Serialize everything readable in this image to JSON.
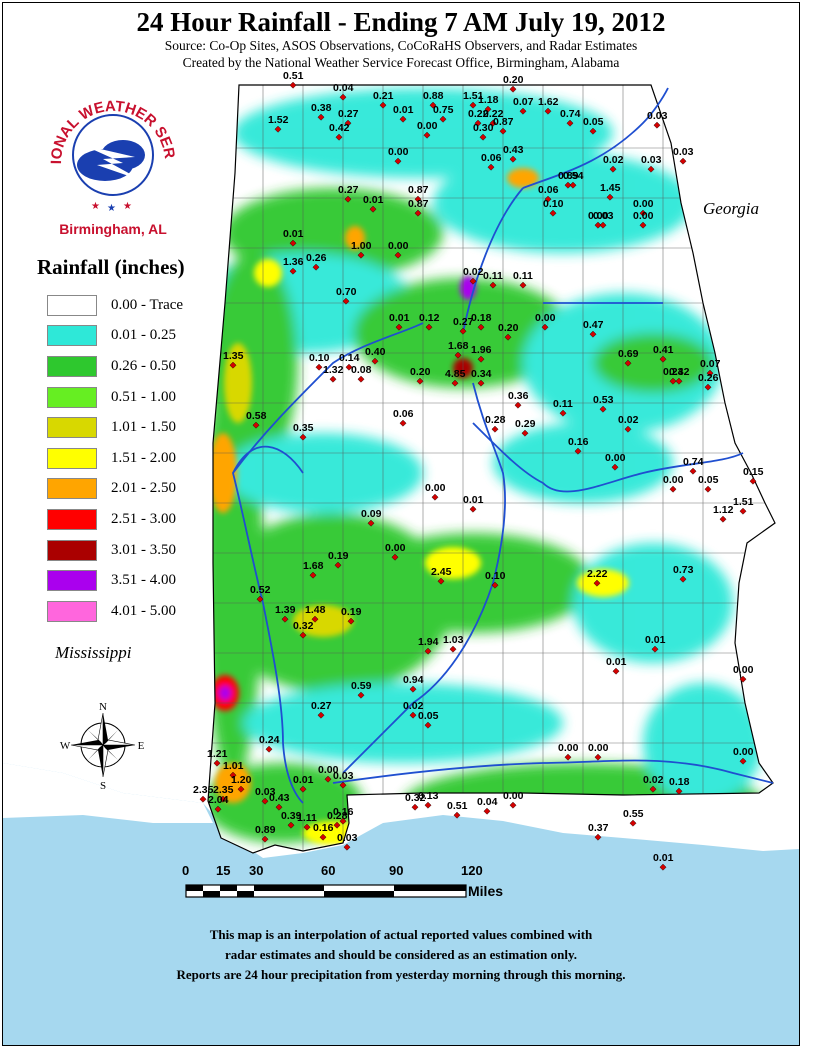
{
  "header": {
    "title": "24 Hour Rainfall - Ending 7 AM July 19, 2012",
    "source": "Source: Co-Op Sites, ASOS Observations, CoCoRaHS Observers, and Radar Estimates",
    "created_by": "Created by the National Weather Service Forecast Office, Birmingham, Alabama"
  },
  "logo": {
    "text": "NATIONAL WEATHER SERVICE",
    "city": "Birmingham, AL",
    "icon": "nws-logo-icon"
  },
  "legend": {
    "title": "Rainfall (inches)",
    "items": [
      {
        "label": "0.00 - Trace",
        "color": "#ffffff"
      },
      {
        "label": "0.01 - 0.25",
        "color": "#2ee8d8"
      },
      {
        "label": "0.26 - 0.50",
        "color": "#2ec82e"
      },
      {
        "label": "0.51 - 1.00",
        "color": "#66ee22"
      },
      {
        "label": "1.01 - 1.50",
        "color": "#d8d800"
      },
      {
        "label": "1.51 - 2.00",
        "color": "#ffff00"
      },
      {
        "label": "2.01 - 2.50",
        "color": "#ffa500"
      },
      {
        "label": "2.51 - 3.00",
        "color": "#ff0000"
      },
      {
        "label": "3.01 - 3.50",
        "color": "#aa0000"
      },
      {
        "label": "3.51 - 4.00",
        "color": "#aa00ee"
      },
      {
        "label": "4.01 - 5.00",
        "color": "#ff66dd"
      }
    ]
  },
  "states": {
    "georgia": "Georgia",
    "mississippi": "Mississippi"
  },
  "compass": {
    "n": "N",
    "s": "S",
    "e": "E",
    "w": "W"
  },
  "scale": {
    "ticks": [
      "0",
      "15",
      "30",
      "60",
      "90",
      "120"
    ],
    "unit": "Miles"
  },
  "disclaimer": [
    "This map is an interpolation of actual reported values combined with",
    "radar estimates and should be considered as an estimation only.",
    "Reports are 24 hour precipitation from yesterday morning through this morning."
  ],
  "reports": [
    "0.51",
    "0.04",
    "0.21",
    "0.88",
    "1.51",
    "0.20",
    "1.18",
    "0.07",
    "1.62",
    "1.52",
    "0.38",
    "0.27",
    "0.42",
    "0.01",
    "0.75",
    "0.22",
    "0.22",
    "0.74",
    "0.03",
    "0.00",
    "0.30",
    "0.87",
    "0.05",
    "0.06",
    "0.43",
    "0.00",
    "0.02",
    "0.03",
    "0.03",
    "0.89",
    "0.54",
    "1.45",
    "0.27",
    "0.87",
    "0.01",
    "0.87",
    "0.06",
    "0.10",
    "0.00",
    "0.03",
    "0.00",
    "0.00",
    "1.00",
    "0.00",
    "0.01",
    "0.26",
    "1.36",
    "0.02",
    "0.11",
    "0.11",
    "0.70",
    "0.01",
    "0.12",
    "0.27",
    "0.18",
    "0.20",
    "0.00",
    "0.47",
    "1.35",
    "1.68",
    "1.96",
    "0.69",
    "0.41",
    "0.07",
    "0.10",
    "0.14",
    "0.40",
    "1.32",
    "0.08",
    "0.20",
    "4.85",
    "0.34",
    "0.36",
    "0.23",
    "0.42",
    "0.26",
    "0.58",
    "0.06",
    "0.28",
    "0.29",
    "0.11",
    "0.53",
    "0.35",
    "0.16",
    "0.00",
    "0.02",
    "0.74",
    "0.15",
    "0.00",
    "0.00",
    "0.01",
    "0.09",
    "0.05",
    "1.12",
    "1.51",
    "0.19",
    "1.68",
    "0.00",
    "2.45",
    "0.10",
    "2.22",
    "0.73",
    "0.52",
    "1.39",
    "1.48",
    "0.32",
    "0.19",
    "1.94",
    "1.03",
    "0.01",
    "0.01",
    "0.00",
    "0.59",
    "0.94",
    "0.27",
    "0.02",
    "0.05",
    "0.24",
    "1.21",
    "1.01",
    "1.20",
    "0.02",
    "0.00",
    "0.03",
    "0.18",
    "2.35",
    "2.35",
    "2.04",
    "0.03",
    "0.43",
    "0.39",
    "1.11",
    "0.16",
    "0.16",
    "0.03",
    "0.28",
    "0.32",
    "0.13",
    "0.51",
    "0.04",
    "0.00",
    "0.37",
    "0.55",
    "0.89",
    "0.01",
    "0.01",
    "0.00",
    "0.00",
    "0.00"
  ]
}
